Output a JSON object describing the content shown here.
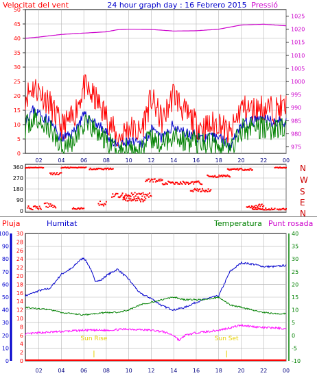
{
  "header": {
    "title": "24 hour graph day : 16 Febrero 2015",
    "left_label": "Velocitat del vent",
    "right_label": "Pressió"
  },
  "bottom_header": {
    "pluja": "Pluja",
    "humitat": "Humitat",
    "temperatura": "Temperatura",
    "punt_rosada": "Punt rosada"
  },
  "compass_letters": [
    "N",
    "W",
    "S",
    "E",
    "N"
  ],
  "sun": {
    "rise": "Sun Rise",
    "set": "Sun Set"
  },
  "colors": {
    "frame": "#000000",
    "grid": "#b4b4b4",
    "wind": "#ff0000",
    "wind_avg": "#0000cc",
    "wind_low": "#008000",
    "pressure": "#cc00cc",
    "humidity": "#0000cc",
    "temperature": "#008000",
    "dewpoint": "#ff00ff",
    "rain": "#ff0000",
    "sun_marker": "#e6d000",
    "hour_labels": "#00007f"
  },
  "chart_data": [
    {
      "type": "line",
      "name": "wind-pressure",
      "x_ticks": [
        "02",
        "04",
        "06",
        "08",
        "10",
        "12",
        "14",
        "16",
        "18",
        "20",
        "22",
        "00"
      ],
      "y_left_ticks": [
        0,
        5,
        10,
        15,
        20,
        25,
        30,
        35,
        40,
        45,
        50
      ],
      "y_right_ticks": [
        975,
        980,
        985,
        990,
        995,
        1000,
        1005,
        1010,
        1015,
        1020,
        1025
      ],
      "y_left_range": [
        0,
        50
      ],
      "y_right_range": [
        972.5,
        1027.5
      ],
      "hour_range": [
        0.8,
        24
      ],
      "pressure": {
        "hours": [
          0.8,
          2,
          4,
          6,
          8,
          9,
          10,
          12,
          14,
          16,
          18,
          20,
          22,
          24
        ],
        "values": [
          1016.5,
          1017,
          1018,
          1018.5,
          1019,
          1019.8,
          1020,
          1019.9,
          1019.3,
          1019.4,
          1020,
          1021.6,
          1021.9,
          1021.3
        ]
      },
      "gust": {
        "hours": [
          0.8,
          1.5,
          2,
          3,
          4,
          5,
          6,
          7,
          8,
          9,
          10,
          11,
          12,
          13,
          14,
          15,
          16,
          17,
          18,
          19,
          20,
          21,
          22,
          23,
          24
        ],
        "values": [
          20,
          23,
          22,
          17,
          9,
          12,
          23,
          19,
          13,
          5,
          9,
          7,
          19,
          11,
          21,
          14,
          10,
          9,
          11,
          6,
          16,
          15,
          16,
          15,
          16
        ]
      },
      "avg": {
        "hours": [
          0.8,
          1.5,
          2,
          3,
          4,
          5,
          6,
          7,
          8,
          9,
          10,
          11,
          12,
          13,
          14,
          15,
          16,
          17,
          18,
          19,
          20,
          21,
          22,
          23,
          24
        ],
        "values": [
          12,
          15,
          14,
          11,
          5,
          7,
          13,
          11,
          7,
          2,
          4,
          3,
          8,
          5,
          10,
          7,
          6,
          5,
          6,
          3,
          10,
          11,
          12,
          11,
          11
        ]
      },
      "low": {
        "hours": [
          0.8,
          1.5,
          2,
          3,
          4,
          5,
          6,
          7,
          8,
          9,
          10,
          11,
          12,
          13,
          14,
          15,
          16,
          17,
          18,
          19,
          20,
          21,
          22,
          23,
          24
        ],
        "values": [
          9,
          12,
          11,
          8,
          3,
          4,
          10,
          8,
          4,
          1,
          2,
          1,
          5,
          3,
          7,
          4,
          4,
          3,
          4,
          1,
          8,
          9,
          9,
          8,
          9
        ]
      }
    },
    {
      "type": "scatter",
      "name": "wind-direction",
      "y_ticks": [
        0,
        90,
        180,
        270,
        360
      ],
      "y_range": [
        0,
        360
      ],
      "hour_range": [
        0.8,
        24
      ],
      "segments": [
        {
          "h0": 0.8,
          "h1": 2.4,
          "dir": 355,
          "spread": 6
        },
        {
          "h0": 1.0,
          "h1": 2.2,
          "dir": 25,
          "spread": 30
        },
        {
          "h0": 2.5,
          "h1": 3.5,
          "dir": 45,
          "spread": 40
        },
        {
          "h0": 3.0,
          "h1": 4.0,
          "dir": 305,
          "spread": 20
        },
        {
          "h0": 4.0,
          "h1": 6.2,
          "dir": 355,
          "spread": 8
        },
        {
          "h0": 5.0,
          "h1": 6.0,
          "dir": 20,
          "spread": 12
        },
        {
          "h0": 6.5,
          "h1": 7.0,
          "dir": 345,
          "spread": 10
        },
        {
          "h0": 7.0,
          "h1": 8.6,
          "dir": 345,
          "spread": 12
        },
        {
          "h0": 7.3,
          "h1": 8.0,
          "dir": 60,
          "spread": 40
        },
        {
          "h0": 8.5,
          "h1": 12.0,
          "dir": 130,
          "spread": 40
        },
        {
          "h0": 9.5,
          "h1": 11.5,
          "dir": 90,
          "spread": 30
        },
        {
          "h0": 11.5,
          "h1": 13.0,
          "dir": 250,
          "spread": 25
        },
        {
          "h0": 13.0,
          "h1": 16.5,
          "dir": 230,
          "spread": 30
        },
        {
          "h0": 15.5,
          "h1": 17.3,
          "dir": 170,
          "spread": 25
        },
        {
          "h0": 17.0,
          "h1": 19.0,
          "dir": 285,
          "spread": 20
        },
        {
          "h0": 18.8,
          "h1": 21.0,
          "dir": 340,
          "spread": 15
        },
        {
          "h0": 20.5,
          "h1": 22.0,
          "dir": 40,
          "spread": 30
        },
        {
          "h0": 21.0,
          "h1": 23.0,
          "dir": 15,
          "spread": 15
        },
        {
          "h0": 23.0,
          "h1": 24.0,
          "dir": 355,
          "spread": 8
        },
        {
          "h0": 23.2,
          "h1": 24.0,
          "dir": 15,
          "spread": 12
        }
      ]
    },
    {
      "type": "line",
      "name": "rain-humidity-temperature-dewpoint",
      "y_humidity_ticks": [
        0,
        10,
        20,
        30,
        40,
        50,
        60,
        70,
        80,
        90,
        100
      ],
      "y_rain_ticks": [
        0,
        2,
        4,
        6,
        8,
        10,
        12,
        14,
        16,
        18,
        20,
        22,
        24,
        26,
        28,
        30
      ],
      "y_temp_ticks": [
        -10,
        -5,
        0,
        5,
        10,
        15,
        20,
        25,
        30,
        35,
        40
      ],
      "humidity_range": [
        0,
        100
      ],
      "rain_range": [
        0,
        30
      ],
      "temp_range": [
        -10,
        40
      ],
      "hour_range": [
        0.8,
        24
      ],
      "humidity": {
        "hours": [
          0.8,
          2,
          3,
          4,
          5,
          5.5,
          6,
          6.5,
          7,
          7.5,
          8,
          9,
          10,
          11,
          12,
          13,
          14,
          15,
          16,
          17,
          18,
          19,
          20,
          21,
          22,
          23,
          24
        ],
        "values": [
          51,
          55,
          57,
          68,
          73,
          78,
          81,
          74,
          63,
          63,
          67,
          72,
          64,
          53,
          49,
          43,
          40,
          42,
          46,
          49,
          51,
          70,
          77,
          76,
          74,
          74,
          75
        ]
      },
      "temperature": {
        "hours": [
          0.8,
          2,
          3,
          4,
          5,
          6,
          7,
          8,
          9,
          10,
          11,
          12,
          13,
          14,
          15,
          16,
          17,
          18,
          19,
          20,
          21,
          22,
          23,
          24
        ],
        "values": [
          11,
          10.5,
          10,
          9,
          8.5,
          8,
          8.5,
          9,
          9,
          10,
          12,
          13,
          14,
          15,
          14,
          14,
          14,
          15,
          12,
          11,
          10,
          9,
          8.5,
          8.5
        ]
      },
      "dewpoint": {
        "hours": [
          0.8,
          2,
          4,
          6,
          8,
          10,
          12,
          13,
          14,
          14.5,
          15,
          16,
          18,
          19,
          20,
          21,
          22,
          23,
          24
        ],
        "values": [
          0.5,
          1,
          1.5,
          2,
          2,
          2.5,
          2,
          1.5,
          0,
          -2,
          0,
          1,
          2,
          3,
          4,
          3.5,
          3,
          3,
          2.5
        ]
      },
      "rain": {
        "hours": [
          0.8,
          24
        ],
        "values": [
          0,
          0
        ]
      },
      "sun_rise_hour": 6.9,
      "sun_set_hour": 18.7
    }
  ]
}
